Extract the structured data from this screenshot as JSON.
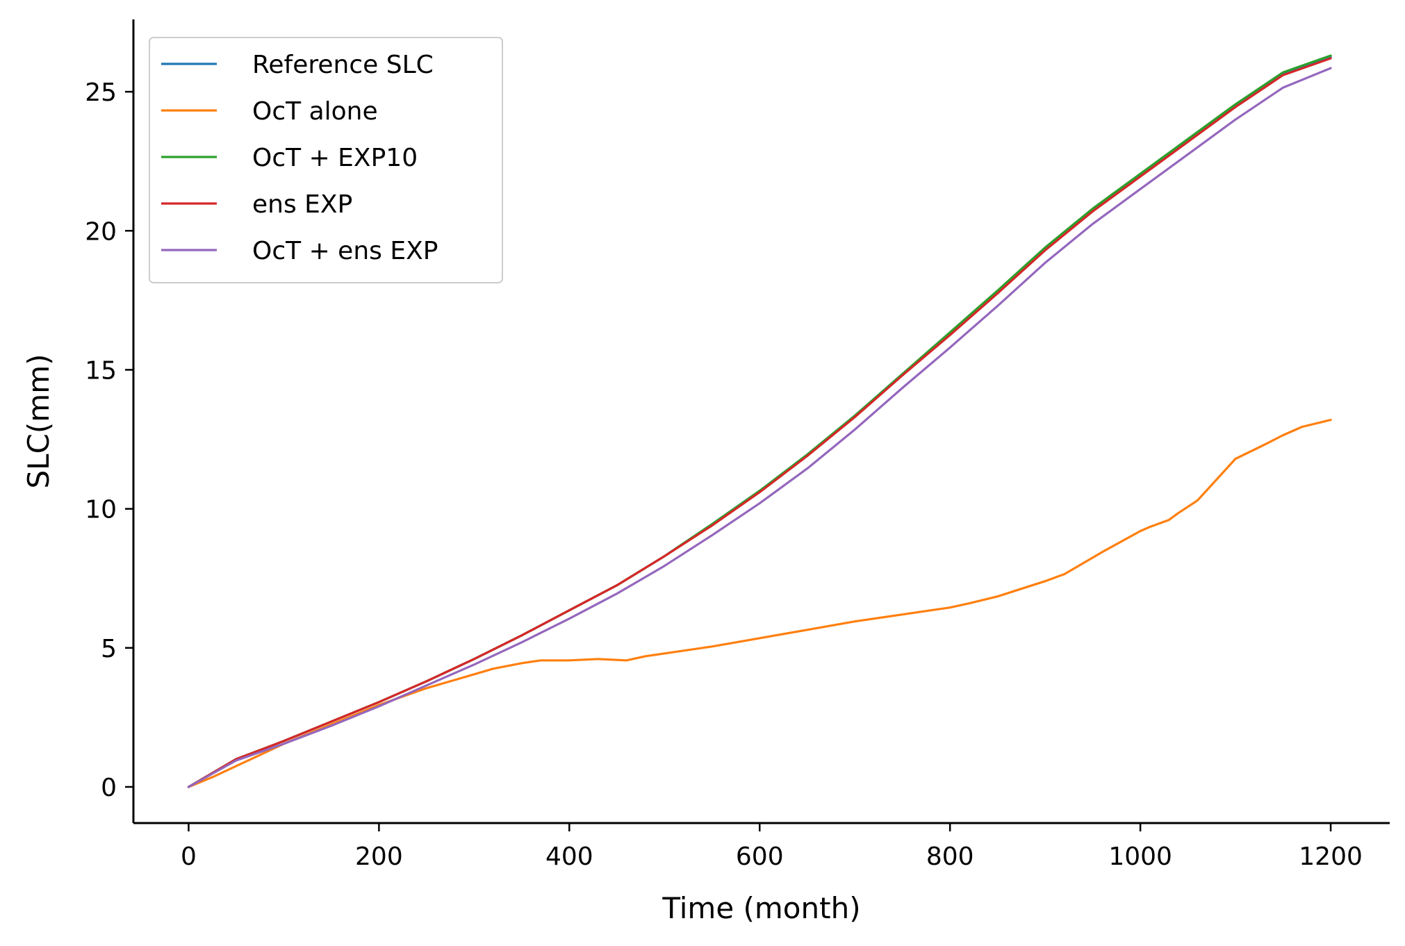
{
  "chart_data": {
    "type": "line",
    "title": "",
    "xlabel": "Time (month)",
    "ylabel": "SLC(mm)",
    "xlim": [
      -58,
      1262
    ],
    "ylim": [
      -1.3,
      27.6
    ],
    "xticks": [
      0,
      200,
      400,
      600,
      800,
      1000,
      1200
    ],
    "xtick_labels": [
      "0",
      "200",
      "400",
      "600",
      "800",
      "1000",
      "1200"
    ],
    "yticks": [
      0,
      5,
      10,
      15,
      20,
      25
    ],
    "ytick_labels": [
      "0",
      "5",
      "10",
      "15",
      "20",
      "25"
    ],
    "grid": false,
    "legend_position": "top-left",
    "series": [
      {
        "name": "Reference SLC",
        "color": "#1f77b4",
        "x": [
          0,
          50,
          100,
          150,
          200,
          250,
          300,
          350,
          400,
          450,
          500,
          550,
          600,
          650,
          700,
          750,
          800,
          850,
          900,
          950,
          1000,
          1050,
          1100,
          1150,
          1200
        ],
        "y": [
          0,
          1.0,
          1.65,
          2.35,
          3.05,
          3.8,
          4.6,
          5.45,
          6.35,
          7.25,
          8.3,
          9.45,
          10.65,
          11.95,
          13.35,
          14.85,
          16.3,
          17.8,
          19.35,
          20.75,
          22.0,
          23.25,
          24.5,
          25.65,
          26.25
        ]
      },
      {
        "name": "OcT alone",
        "color": "#ff7f0e",
        "x": [
          0,
          25,
          50,
          75,
          100,
          150,
          200,
          250,
          300,
          320,
          350,
          370,
          390,
          400,
          430,
          460,
          480,
          500,
          550,
          600,
          650,
          700,
          750,
          800,
          820,
          850,
          900,
          920,
          940,
          960,
          1000,
          1010,
          1030,
          1040,
          1060,
          1080,
          1100,
          1130,
          1150,
          1170,
          1200
        ],
        "y": [
          0,
          0.35,
          0.75,
          1.15,
          1.55,
          2.25,
          2.95,
          3.55,
          4.05,
          4.25,
          4.45,
          4.55,
          4.55,
          4.55,
          4.6,
          4.55,
          4.7,
          4.8,
          5.05,
          5.35,
          5.65,
          5.95,
          6.2,
          6.45,
          6.6,
          6.85,
          7.4,
          7.65,
          8.05,
          8.45,
          9.2,
          9.35,
          9.6,
          9.85,
          10.3,
          11.05,
          11.8,
          12.3,
          12.65,
          12.95,
          13.2
        ]
      },
      {
        "name": "OcT + EXP10",
        "color": "#2ca02c",
        "x": [
          0,
          50,
          100,
          150,
          200,
          250,
          300,
          350,
          400,
          450,
          500,
          550,
          600,
          650,
          700,
          750,
          800,
          850,
          900,
          950,
          1000,
          1050,
          1100,
          1150,
          1200
        ],
        "y": [
          0,
          1.0,
          1.65,
          2.35,
          3.05,
          3.8,
          4.6,
          5.45,
          6.35,
          7.25,
          8.3,
          9.45,
          10.65,
          11.95,
          13.35,
          14.85,
          16.35,
          17.85,
          19.4,
          20.8,
          22.05,
          23.3,
          24.55,
          25.7,
          26.3
        ]
      },
      {
        "name": "ens EXP",
        "color": "#d62728",
        "x": [
          0,
          50,
          100,
          150,
          200,
          250,
          300,
          350,
          400,
          450,
          500,
          550,
          600,
          650,
          700,
          750,
          800,
          850,
          900,
          950,
          1000,
          1050,
          1100,
          1150,
          1200
        ],
        "y": [
          0,
          1.0,
          1.65,
          2.35,
          3.05,
          3.8,
          4.6,
          5.45,
          6.35,
          7.25,
          8.3,
          9.4,
          10.6,
          11.9,
          13.3,
          14.8,
          16.25,
          17.75,
          19.3,
          20.7,
          21.95,
          23.2,
          24.45,
          25.6,
          26.2
        ]
      },
      {
        "name": "OcT + ens EXP",
        "color": "#9467bd",
        "x": [
          0,
          50,
          100,
          150,
          200,
          250,
          300,
          350,
          400,
          450,
          500,
          550,
          600,
          650,
          700,
          750,
          800,
          850,
          900,
          950,
          1000,
          1050,
          1100,
          1150,
          1200
        ],
        "y": [
          0,
          0.95,
          1.55,
          2.2,
          2.9,
          3.65,
          4.4,
          5.2,
          6.05,
          6.95,
          7.95,
          9.05,
          10.2,
          11.45,
          12.85,
          14.35,
          15.8,
          17.3,
          18.85,
          20.25,
          21.5,
          22.75,
          24.0,
          25.15,
          25.85
        ]
      }
    ]
  }
}
